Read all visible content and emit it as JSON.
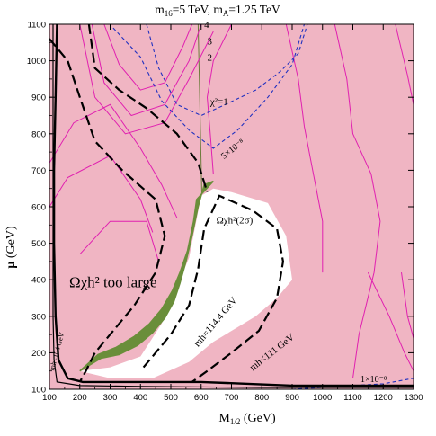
{
  "chart_data": {
    "type": "contour",
    "title": "m16=5 TeV,  mA=1.25 TeV",
    "title_parts": {
      "m": "m",
      "m_sub": "16",
      "m_val": "=5 TeV,  m",
      "a_sub": "A",
      "a_val": "=1.25 TeV"
    },
    "xlabel": {
      "main": "M",
      "sub": "1/2",
      "unit": " (GeV)"
    },
    "ylabel": {
      "main": "μ",
      "unit": " (GeV)"
    },
    "xlim": [
      100,
      1300
    ],
    "ylim": [
      100,
      1100
    ],
    "xticks": [
      100,
      200,
      300,
      400,
      500,
      600,
      700,
      800,
      900,
      1000,
      1100,
      1200,
      1300
    ],
    "yticks": [
      100,
      200,
      300,
      400,
      500,
      600,
      700,
      800,
      900,
      1000,
      1100
    ],
    "background_color": "#f0b5c3",
    "allowed_region_color": "#ffffff",
    "wmap_band_color": "#6a8e3a",
    "chi2_color": "#e020b0",
    "bsmu_color": "#2030c0",
    "higgs_bound_color": "#000000",
    "allowed_region": [
      [
        200,
        150
      ],
      [
        300,
        160
      ],
      [
        400,
        190
      ],
      [
        470,
        280
      ],
      [
        560,
        460
      ],
      [
        600,
        630
      ],
      [
        640,
        650
      ],
      [
        700,
        640
      ],
      [
        820,
        610
      ],
      [
        880,
        520
      ],
      [
        900,
        400
      ],
      [
        850,
        350
      ],
      [
        780,
        300
      ],
      [
        720,
        270
      ],
      [
        640,
        230
      ],
      [
        560,
        175
      ],
      [
        440,
        130
      ],
      [
        300,
        130
      ],
      [
        200,
        150
      ]
    ],
    "wmap_band": {
      "upper": [
        [
          200,
          150
        ],
        [
          260,
          195
        ],
        [
          320,
          215
        ],
        [
          380,
          245
        ],
        [
          430,
          280
        ],
        [
          470,
          320
        ],
        [
          505,
          370
        ],
        [
          530,
          420
        ],
        [
          555,
          480
        ],
        [
          575,
          560
        ],
        [
          585,
          620
        ],
        [
          640,
          670
        ]
      ],
      "lower": [
        [
          200,
          150
        ],
        [
          270,
          185
        ],
        [
          330,
          195
        ],
        [
          390,
          220
        ],
        [
          440,
          255
        ],
        [
          480,
          295
        ],
        [
          510,
          340
        ],
        [
          530,
          390
        ],
        [
          550,
          450
        ],
        [
          570,
          520
        ],
        [
          590,
          600
        ],
        [
          610,
          660
        ]
      ]
    },
    "chi2_contours": [
      {
        "label": "χ²=1",
        "points": [
          [
            640,
            690
          ],
          [
            630,
            800
          ],
          [
            620,
            900
          ],
          [
            640,
            1000
          ],
          [
            700,
            1100
          ]
        ]
      },
      {
        "label": "2",
        "points": [
          [
            200,
            1100
          ],
          [
            250,
            900
          ],
          [
            350,
            800
          ],
          [
            480,
            830
          ],
          [
            560,
            950
          ],
          [
            640,
            1080
          ]
        ]
      },
      {
        "label": "3",
        "points": [
          [
            240,
            1100
          ],
          [
            280,
            940
          ],
          [
            370,
            850
          ],
          [
            480,
            880
          ],
          [
            560,
            1000
          ],
          [
            600,
            1100
          ]
        ]
      },
      {
        "label": "4",
        "points": [
          [
            280,
            1100
          ],
          [
            330,
            990
          ],
          [
            400,
            920
          ],
          [
            480,
            940
          ],
          [
            540,
            1040
          ],
          [
            570,
            1100
          ]
        ]
      },
      {
        "label": "",
        "points": [
          [
            100,
            720
          ],
          [
            180,
            830
          ],
          [
            300,
            880
          ],
          [
            400,
            760
          ],
          [
            470,
            660
          ],
          [
            520,
            570
          ]
        ]
      },
      {
        "label": "",
        "points": [
          [
            100,
            600
          ],
          [
            160,
            680
          ],
          [
            300,
            740
          ],
          [
            400,
            620
          ],
          [
            440,
            530
          ]
        ]
      },
      {
        "label": "",
        "points": [
          [
            200,
            470
          ],
          [
            300,
            560
          ],
          [
            420,
            560
          ],
          [
            460,
            450
          ]
        ]
      },
      {
        "label": "",
        "points": [
          [
            880,
            1100
          ],
          [
            920,
            950
          ],
          [
            940,
            820
          ],
          [
            970,
            690
          ],
          [
            1000,
            560
          ],
          [
            1000,
            420
          ]
        ]
      },
      {
        "label": "",
        "points": [
          [
            1040,
            1100
          ],
          [
            1080,
            950
          ],
          [
            1100,
            800
          ],
          [
            1160,
            690
          ],
          [
            1190,
            560
          ],
          [
            1170,
            420
          ],
          [
            1120,
            250
          ],
          [
            1100,
            130
          ]
        ]
      },
      {
        "label": "",
        "points": [
          [
            1240,
            1100
          ],
          [
            1280,
            960
          ],
          [
            1300,
            880
          ]
        ]
      },
      {
        "label": "",
        "points": [
          [
            1260,
            420
          ],
          [
            1280,
            300
          ],
          [
            1300,
            240
          ]
        ]
      },
      {
        "label": "",
        "points": [
          [
            1150,
            420
          ],
          [
            1220,
            300
          ],
          [
            1270,
            200
          ],
          [
            1300,
            150
          ]
        ]
      }
    ],
    "bsmu_contours": [
      {
        "label": "5×10⁻⁸",
        "points": [
          [
            310,
            1090
          ],
          [
            400,
            1010
          ],
          [
            470,
            890
          ],
          [
            560,
            810
          ],
          [
            640,
            760
          ],
          [
            720,
            810
          ],
          [
            820,
            900
          ],
          [
            900,
            990
          ],
          [
            940,
            1100
          ]
        ]
      },
      {
        "label": "",
        "points": [
          [
            420,
            1100
          ],
          [
            460,
            980
          ],
          [
            520,
            880
          ],
          [
            600,
            850
          ],
          [
            680,
            880
          ],
          [
            780,
            920
          ],
          [
            860,
            970
          ],
          [
            920,
            1020
          ],
          [
            950,
            1100
          ]
        ]
      },
      {
        "label": "1×10⁻⁸",
        "points": [
          [
            900,
            100
          ],
          [
            1000,
            105
          ],
          [
            1100,
            110
          ],
          [
            1200,
            115
          ],
          [
            1300,
            130
          ]
        ]
      }
    ],
    "higgs_bounds": [
      {
        "label": "mh=114.4 GeV",
        "points": [
          [
            100,
            1060
          ],
          [
            160,
            1000
          ],
          [
            200,
            900
          ],
          [
            250,
            780
          ],
          [
            340,
            700
          ],
          [
            450,
            620
          ],
          [
            480,
            520
          ],
          [
            450,
            420
          ],
          [
            380,
            330
          ],
          [
            300,
            250
          ],
          [
            250,
            200
          ],
          [
            220,
            150
          ],
          [
            200,
            120
          ]
        ]
      },
      {
        "label": "mh<111 GeV",
        "points": [
          [
            410,
            160
          ],
          [
            500,
            250
          ],
          [
            560,
            330
          ],
          [
            590,
            430
          ],
          [
            610,
            540
          ],
          [
            660,
            630
          ],
          [
            770,
            590
          ],
          [
            850,
            540
          ],
          [
            870,
            450
          ],
          [
            850,
            350
          ],
          [
            790,
            260
          ],
          [
            700,
            200
          ],
          [
            620,
            150
          ],
          [
            570,
            120
          ]
        ]
      },
      {
        "label": "",
        "points": [
          [
            230,
            1100
          ],
          [
            250,
            980
          ],
          [
            330,
            920
          ],
          [
            420,
            870
          ],
          [
            520,
            800
          ],
          [
            590,
            720
          ],
          [
            620,
            640
          ]
        ]
      }
    ],
    "stau_lsp_line": [
      [
        125,
        1100
      ],
      [
        120,
        900
      ],
      [
        115,
        700
      ],
      [
        115,
        500
      ],
      [
        120,
        300
      ],
      [
        130,
        180
      ],
      [
        160,
        130
      ],
      [
        210,
        120
      ],
      [
        320,
        120
      ],
      [
        600,
        120
      ],
      [
        900,
        110
      ],
      [
        1300,
        110
      ]
    ],
    "stau_lsp_line2": [
      [
        112,
        1100
      ],
      [
        112,
        800
      ],
      [
        112,
        500
      ],
      [
        112,
        300
      ],
      [
        115,
        180
      ],
      [
        125,
        120
      ],
      [
        200,
        110
      ],
      [
        400,
        108
      ],
      [
        800,
        105
      ],
      [
        1300,
        105
      ]
    ],
    "vertical_line_x": 590,
    "annotations": {
      "too_large": "Ωχh² too large",
      "two_sigma": "Ωχh²(2σ)",
      "chi2_1": "χ²=1",
      "chi2_2": "2",
      "chi2_3": "3",
      "chi2_4": "4",
      "bs_5e8": "5×10⁻⁸",
      "bs_1e8": "1×10⁻⁸",
      "mh_1144": "mh=114.4 GeV",
      "mh_111": "mh<111 GeV",
      "mh_left": "mh<104 GeV"
    }
  }
}
